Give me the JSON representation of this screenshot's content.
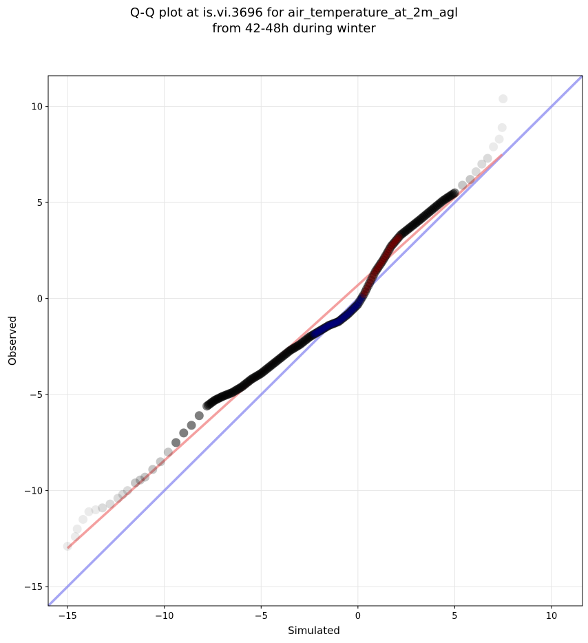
{
  "chart_data": {
    "type": "scatter",
    "title": "Q-Q plot at is.vi.3696 for air_temperature_at_2m_agl",
    "subtitle": "from 42-48h during winter",
    "xlabel": "Simulated",
    "ylabel": "Observed",
    "xlim": [
      -16,
      11.6
    ],
    "ylim": [
      -16,
      11.6
    ],
    "xticks": [
      "−15",
      "−10",
      "−5",
      "0",
      "5",
      "10"
    ],
    "yticks": [
      "−15",
      "−10",
      "−5",
      "0",
      "5",
      "10"
    ],
    "grid": true,
    "points": {
      "x": [
        -15.0,
        -14.6,
        -14.5,
        -14.2,
        -13.9,
        -13.2,
        -12.8,
        -12.4,
        -11.9,
        -11.5,
        -11.0,
        -10.6,
        -10.2,
        -9.8,
        -9.4,
        -9.0,
        -8.6,
        -8.2,
        -7.8,
        -7.4,
        -7.0,
        -6.5,
        -6.0,
        -5.5,
        -5.0,
        -4.5,
        -4.0,
        -3.5,
        -3.0,
        -2.5,
        -2.0,
        -1.5,
        -1.0,
        -0.5,
        0.0,
        0.3,
        0.6,
        0.9,
        1.3,
        1.7,
        2.2,
        2.7,
        3.2,
        3.8,
        4.4,
        5.0,
        5.4,
        5.8,
        6.1,
        6.4,
        6.7,
        7.0,
        7.3,
        7.45
      ],
      "y": [
        -12.9,
        -12.4,
        -12.0,
        -11.5,
        -11.1,
        -10.9,
        -10.7,
        -10.4,
        -10.0,
        -9.6,
        -9.3,
        -8.9,
        -8.5,
        -8.0,
        -7.5,
        -7.0,
        -6.6,
        -6.1,
        -5.6,
        -5.3,
        -5.1,
        -4.9,
        -4.6,
        -4.2,
        -3.9,
        -3.5,
        -3.1,
        -2.7,
        -2.4,
        -2.0,
        -1.7,
        -1.4,
        -1.2,
        -0.8,
        -0.3,
        0.2,
        0.8,
        1.4,
        2.0,
        2.7,
        3.3,
        3.7,
        4.1,
        4.6,
        5.1,
        5.5,
        5.9,
        6.2,
        6.6,
        7.0,
        7.3,
        7.9,
        8.3,
        8.9
      ],
      "outlier": {
        "x": 7.5,
        "y": 10.4
      },
      "color": "#000000"
    },
    "fit_line": {
      "x": [
        -15.0,
        7.45
      ],
      "y": [
        -13.0,
        7.5
      ],
      "color": "#f08080"
    },
    "identity_line": {
      "x": [
        -16,
        11.6
      ],
      "y": [
        -16,
        11.6
      ],
      "color": "#8080f0"
    },
    "highlight_colors": {
      "low": "#00008b",
      "high": "#8b0000"
    }
  }
}
